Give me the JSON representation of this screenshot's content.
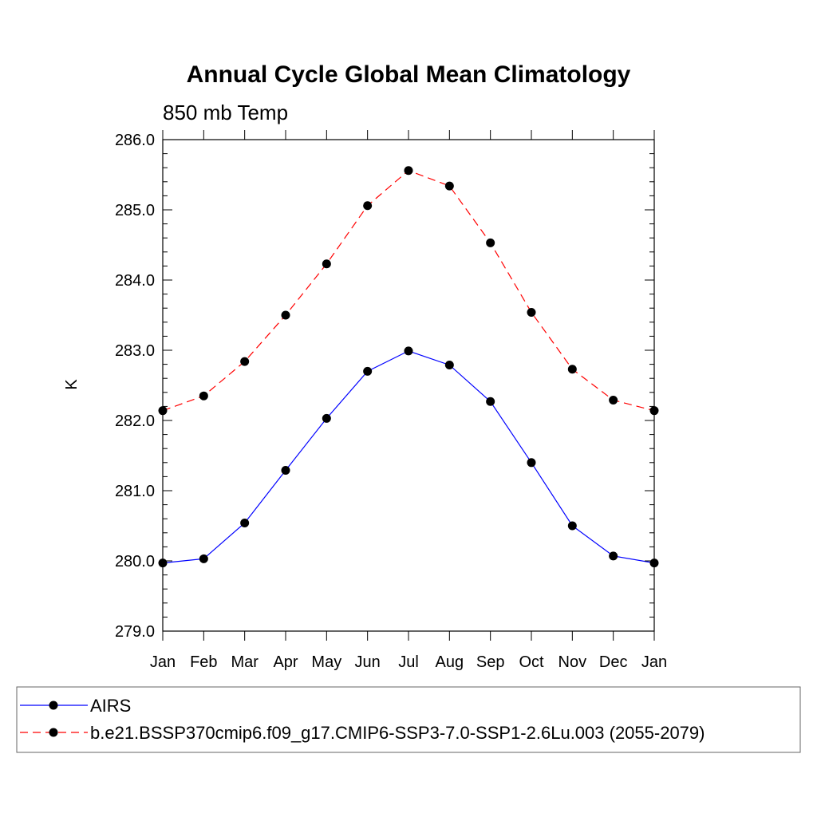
{
  "chart_data": {
    "type": "line",
    "title": "Annual Cycle Global Mean Climatology",
    "subtitle": "850 mb Temp",
    "xlabel": "",
    "ylabel": "K",
    "ylim": [
      279.0,
      286.0
    ],
    "yticks": [
      "279.0",
      "280.0",
      "281.0",
      "282.0",
      "283.0",
      "284.0",
      "285.0",
      "286.0"
    ],
    "categories": [
      "Jan",
      "Feb",
      "Mar",
      "Apr",
      "May",
      "Jun",
      "Jul",
      "Aug",
      "Sep",
      "Oct",
      "Nov",
      "Dec",
      "Jan"
    ],
    "grid": false,
    "legend_position": "bottom",
    "series": [
      {
        "name": "AIRS",
        "color": "#0000ff",
        "line_style": "solid",
        "marker": "filled-circle",
        "values": [
          279.97,
          280.03,
          280.54,
          281.29,
          282.03,
          282.7,
          282.99,
          282.79,
          282.27,
          281.4,
          280.5,
          280.07,
          279.97
        ]
      },
      {
        "name": "b.e21.BSSP370cmip6.f09_g17.CMIP6-SSP3-7.0-SSP1-2.6Lu.003 (2055-2079)",
        "color": "#ff0000",
        "line_style": "dashed",
        "marker": "filled-circle",
        "values": [
          282.14,
          282.35,
          282.84,
          283.5,
          284.23,
          285.06,
          285.56,
          285.34,
          284.53,
          283.54,
          282.73,
          282.29,
          282.14
        ]
      }
    ]
  }
}
